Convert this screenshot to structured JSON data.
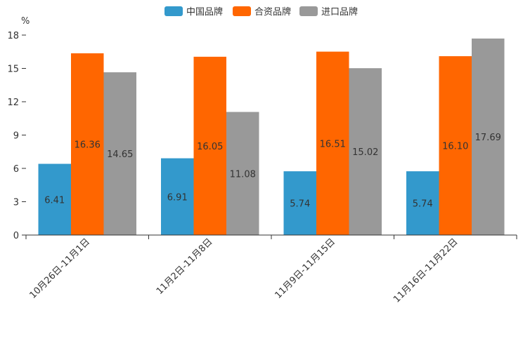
{
  "chart_data": {
    "type": "bar",
    "title": "",
    "xlabel": "",
    "ylabel": "%",
    "ylim": [
      0,
      18
    ],
    "yticks": [
      0,
      3,
      6,
      9,
      12,
      15,
      18
    ],
    "legend_position": "top-center",
    "grid": false,
    "categories": [
      "10月26日-11月1日",
      "11月2日-11月8日",
      "11月9日-11月15日",
      "11月16日-11月22日"
    ],
    "series": [
      {
        "name": "中国品牌",
        "color": "#3399cc",
        "values": [
          6.41,
          6.91,
          5.74,
          5.74
        ],
        "labels": [
          "6.41",
          "6.91",
          "5.74",
          "5.74"
        ]
      },
      {
        "name": "合资品牌",
        "color": "#ff6600",
        "values": [
          16.36,
          16.05,
          16.51,
          16.1
        ],
        "labels": [
          "16.36",
          "16.05",
          "16.51",
          "16.10"
        ]
      },
      {
        "name": "进口品牌",
        "color": "#999999",
        "values": [
          14.65,
          11.08,
          15.02,
          17.69
        ],
        "labels": [
          "14.65",
          "11.08",
          "15.02",
          "17.69"
        ]
      }
    ]
  }
}
